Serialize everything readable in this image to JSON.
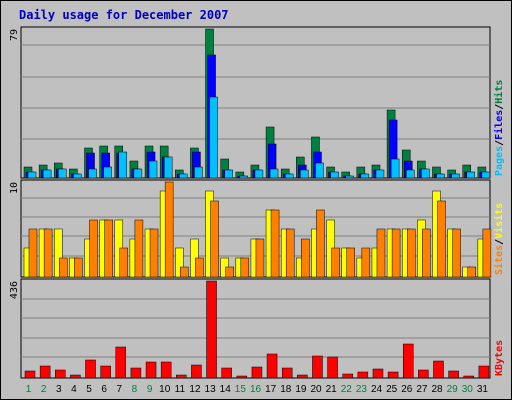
{
  "title": "Daily usage for December 2007",
  "colors": {
    "hits": "#008040",
    "files": "#0000ff",
    "pages": "#00c0ff",
    "visits": "#ffff00",
    "sites": "#ff8000",
    "kbytes": "#ff0000",
    "weekday_label": "#000000",
    "weekend_label": "#008040",
    "background": "#c0c0c0",
    "title": "#0000c0"
  },
  "chart_data": [
    {
      "type": "bar",
      "name": "hits-files-pages",
      "categories": [
        "1",
        "2",
        "3",
        "4",
        "5",
        "6",
        "7",
        "8",
        "9",
        "10",
        "11",
        "12",
        "13",
        "14",
        "15",
        "16",
        "17",
        "18",
        "19",
        "20",
        "21",
        "22",
        "23",
        "24",
        "25",
        "26",
        "27",
        "28",
        "29",
        "30",
        "31"
      ],
      "weekend_days": [
        "1",
        "2",
        "8",
        "9",
        "15",
        "16",
        "22",
        "23",
        "29",
        "30"
      ],
      "ylim": [
        0,
        79
      ],
      "max_label": "79",
      "series": [
        {
          "name": "Hits",
          "values": [
            6,
            7,
            8,
            5,
            16,
            17,
            17,
            9,
            17,
            17,
            4,
            16,
            79,
            10,
            3,
            7,
            27,
            5,
            11,
            22,
            6,
            3,
            6,
            7,
            36,
            15,
            9,
            6,
            4,
            7,
            6
          ]
        },
        {
          "name": "Files",
          "values": [
            3,
            4,
            5,
            2,
            13,
            13,
            13,
            5,
            14,
            11,
            2,
            14,
            65,
            4,
            1,
            4,
            18,
            2,
            7,
            14,
            3,
            1,
            2,
            4,
            31,
            9,
            5,
            2,
            2,
            3,
            3
          ]
        },
        {
          "name": "Pages",
          "values": [
            3,
            4,
            5,
            2,
            5,
            6,
            14,
            5,
            9,
            11,
            2,
            6,
            43,
            4,
            1,
            4,
            5,
            2,
            4,
            8,
            3,
            1,
            2,
            4,
            10,
            4,
            5,
            2,
            2,
            3,
            3
          ]
        }
      ],
      "axis_label_parts": [
        "Pages",
        "Files",
        "Hits"
      ]
    },
    {
      "type": "bar",
      "name": "visits-sites",
      "categories": [
        "1",
        "2",
        "3",
        "4",
        "5",
        "6",
        "7",
        "8",
        "9",
        "10",
        "11",
        "12",
        "13",
        "14",
        "15",
        "16",
        "17",
        "18",
        "19",
        "20",
        "21",
        "22",
        "23",
        "24",
        "25",
        "26",
        "27",
        "28",
        "29",
        "30",
        "31"
      ],
      "ylim": [
        0,
        10
      ],
      "max_label": "10",
      "series": [
        {
          "name": "Visits",
          "values": [
            3,
            5,
            5,
            2,
            4,
            6,
            6,
            4,
            5,
            9,
            3,
            4,
            9,
            2,
            2,
            4,
            7,
            5,
            2,
            5,
            6,
            3,
            2,
            3,
            5,
            5,
            6,
            9,
            5,
            1,
            4
          ]
        },
        {
          "name": "Sites",
          "values": [
            5,
            5,
            2,
            2,
            6,
            6,
            3,
            6,
            5,
            10,
            1,
            2,
            8,
            1,
            2,
            4,
            7,
            5,
            4,
            7,
            3,
            3,
            3,
            5,
            5,
            5,
            5,
            8,
            5,
            1,
            5
          ]
        }
      ],
      "axis_label_parts": [
        "Sites",
        "Visits"
      ]
    },
    {
      "type": "bar",
      "name": "kbytes",
      "categories": [
        "1",
        "2",
        "3",
        "4",
        "5",
        "6",
        "7",
        "8",
        "9",
        "10",
        "11",
        "12",
        "13",
        "14",
        "15",
        "16",
        "17",
        "18",
        "19",
        "20",
        "21",
        "22",
        "23",
        "24",
        "25",
        "26",
        "27",
        "28",
        "29",
        "30",
        "31"
      ],
      "ylim": [
        0,
        436
      ],
      "max_label": "436",
      "series": [
        {
          "name": "KBytes",
          "values": [
            30,
            55,
            35,
            15,
            80,
            55,
            140,
            45,
            70,
            70,
            15,
            60,
            436,
            45,
            10,
            50,
            110,
            45,
            15,
            100,
            95,
            20,
            25,
            40,
            25,
            155,
            35,
            75,
            30,
            10,
            55
          ]
        }
      ],
      "axis_label_parts": [
        "KBytes"
      ]
    }
  ]
}
